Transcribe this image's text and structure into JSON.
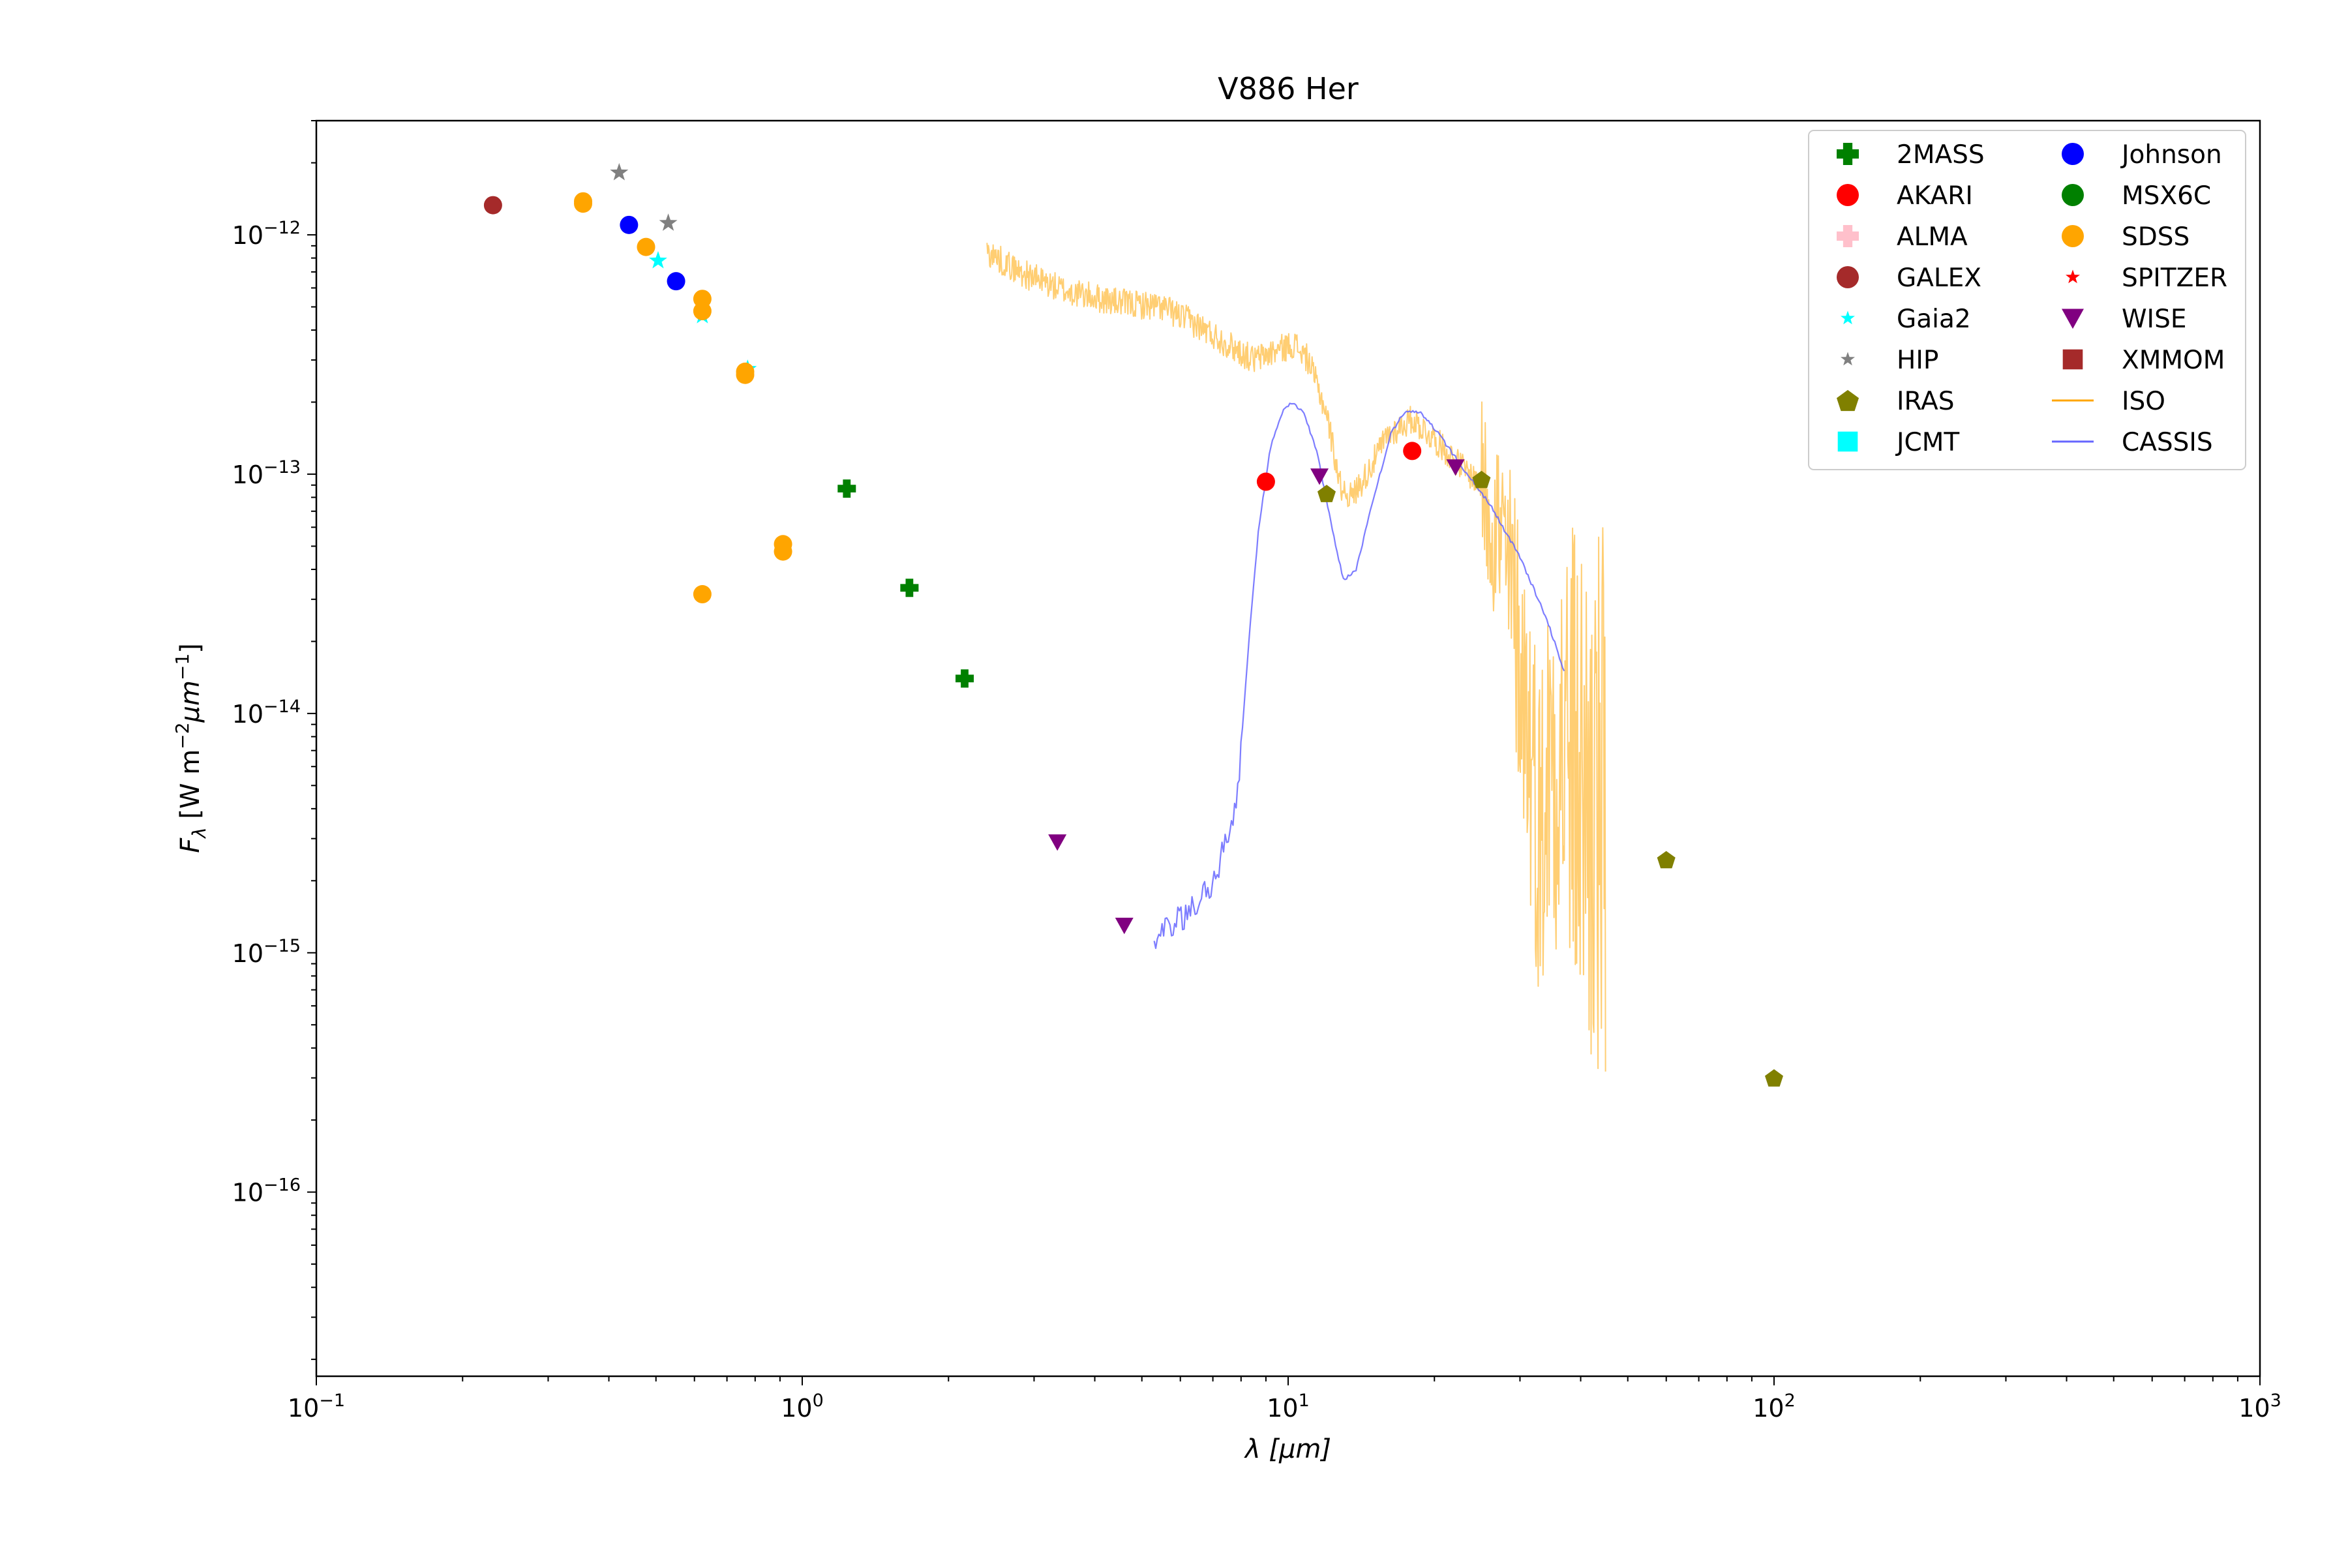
{
  "chart_data": {
    "type": "scatter",
    "title": "V886 Her",
    "xlabel": "λ [μm]",
    "ylabel": "F_λ [W m⁻² μm⁻¹]",
    "x_scale": "log",
    "y_scale": "log",
    "xlim": [
      0.1,
      1000
    ],
    "ylim": [
      1.7e-17,
      3e-12
    ],
    "x_ticks": [
      {
        "value": 0.1,
        "base": "10",
        "exp": "−1"
      },
      {
        "value": 1,
        "base": "10",
        "exp": "0"
      },
      {
        "value": 10,
        "base": "10",
        "exp": "1"
      },
      {
        "value": 100,
        "base": "10",
        "exp": "2"
      },
      {
        "value": 1000,
        "base": "10",
        "exp": "3"
      }
    ],
    "y_ticks": [
      {
        "value": 1e-16,
        "base": "10",
        "exp": "−16"
      },
      {
        "value": 1e-15,
        "base": "10",
        "exp": "−15"
      },
      {
        "value": 1e-14,
        "base": "10",
        "exp": "−14"
      },
      {
        "value": 1e-13,
        "base": "10",
        "exp": "−13"
      },
      {
        "value": 1e-12,
        "base": "10",
        "exp": "−12"
      }
    ],
    "grid": false,
    "legend_position": "top-right",
    "series": [
      {
        "name": "2MASS",
        "marker": "plus",
        "color": "#008000",
        "points": [
          [
            1.235,
            8.7e-14
          ],
          [
            1.662,
            3.35e-14
          ],
          [
            2.159,
            1.4e-14
          ]
        ]
      },
      {
        "name": "AKARI",
        "marker": "circle",
        "color": "#ff0000",
        "points": [
          [
            9.0,
            9.3e-14
          ],
          [
            18.0,
            1.25e-13
          ]
        ]
      },
      {
        "name": "ALMA",
        "marker": "plus",
        "color": "#ffc0cb",
        "points": []
      },
      {
        "name": "GALEX",
        "marker": "circle",
        "color": "#a52a2a",
        "points": [
          [
            0.231,
            1.33e-12
          ]
        ]
      },
      {
        "name": "Gaia2",
        "marker": "star",
        "color": "#00ffff",
        "points": [
          [
            0.505,
            7.8e-13
          ],
          [
            0.623,
            4.6e-13
          ],
          [
            0.772,
            2.75e-13
          ]
        ]
      },
      {
        "name": "HIP",
        "marker": "star",
        "color": "#808080",
        "points": [
          [
            0.42,
            1.82e-12
          ],
          [
            0.53,
            1.12e-12
          ]
        ]
      },
      {
        "name": "IRAS",
        "marker": "pentagon",
        "color": "#808000",
        "points": [
          [
            12.0,
            8.3e-14
          ],
          [
            25.0,
            9.5e-14
          ],
          [
            60.0,
            2.45e-15
          ],
          [
            100.0,
            3e-16
          ]
        ]
      },
      {
        "name": "JCMT",
        "marker": "square",
        "color": "#00ffff",
        "points": []
      },
      {
        "name": "Johnson",
        "marker": "circle",
        "color": "#0000ff",
        "points": [
          [
            0.44,
            1.1e-12
          ],
          [
            0.55,
            6.4e-13
          ]
        ]
      },
      {
        "name": "MSX6C",
        "marker": "circle",
        "color": "#008000",
        "points": []
      },
      {
        "name": "SDSS",
        "marker": "circle",
        "color": "#ffa500",
        "points": [
          [
            0.354,
            1.38e-12
          ],
          [
            0.354,
            1.35e-12
          ],
          [
            0.477,
            8.9e-13
          ],
          [
            0.623,
            5.4e-13
          ],
          [
            0.623,
            4.8e-13
          ],
          [
            0.763,
            2.6e-13
          ],
          [
            0.763,
            2.68e-13
          ],
          [
            0.913,
            5.1e-14
          ],
          [
            0.913,
            4.75e-14
          ],
          [
            0.623,
            3.15e-14
          ]
        ]
      },
      {
        "name": "SPITZER",
        "marker": "star",
        "color": "#ff0000",
        "points": []
      },
      {
        "name": "WISE",
        "marker": "triangle-down",
        "color": "#800080",
        "points": [
          [
            3.35,
            2.9e-15
          ],
          [
            4.6,
            1.3e-15
          ],
          [
            11.6,
            9.8e-14
          ],
          [
            22.1,
            1.07e-13
          ]
        ]
      },
      {
        "name": "XMMOM",
        "marker": "square",
        "color": "#a52a2a",
        "points": []
      }
    ],
    "lines": [
      {
        "name": "ISO",
        "color": "#ffa500",
        "anchors": [
          [
            2.4,
            8.5e-13
          ],
          [
            2.8,
            7e-13
          ],
          [
            3.5,
            5.8e-13
          ],
          [
            4.5,
            5.2e-13
          ],
          [
            5.5,
            5e-13
          ],
          [
            6.5,
            4.2e-13
          ],
          [
            7.5,
            3.5e-13
          ],
          [
            8.5,
            3e-13
          ],
          [
            9.5,
            3.3e-13
          ],
          [
            10.3,
            3.5e-13
          ],
          [
            11.0,
            3e-13
          ],
          [
            12.0,
            1.8e-13
          ],
          [
            12.8,
            9e-14
          ],
          [
            13.5,
            8e-14
          ],
          [
            14.5,
            1e-13
          ],
          [
            16.0,
            1.45e-13
          ],
          [
            18.0,
            1.7e-13
          ],
          [
            20.0,
            1.4e-13
          ],
          [
            22.0,
            1.15e-13
          ],
          [
            25.0,
            9e-14
          ],
          [
            27.0,
            6e-14
          ],
          [
            29.0,
            3e-14
          ],
          [
            31.0,
            1e-14
          ],
          [
            33.0,
            3e-15
          ],
          [
            35.0,
            8e-15
          ],
          [
            38.0,
            7e-15
          ],
          [
            42.0,
            4e-15
          ],
          [
            45.0,
            3e-15
          ]
        ]
      },
      {
        "name": "CASSIS",
        "color": "#6666ff",
        "anchors": [
          [
            5.3,
            1.15e-15
          ],
          [
            5.8,
            1.3e-15
          ],
          [
            6.5,
            1.6e-15
          ],
          [
            7.0,
            2e-15
          ],
          [
            7.5,
            3e-15
          ],
          [
            7.9,
            5e-15
          ],
          [
            8.3,
            2e-14
          ],
          [
            8.7,
            6e-14
          ],
          [
            9.2,
            1.3e-13
          ],
          [
            9.8,
            1.9e-13
          ],
          [
            10.2,
            2e-13
          ],
          [
            10.8,
            1.8e-13
          ],
          [
            11.5,
            1.2e-13
          ],
          [
            12.3,
            6e-14
          ],
          [
            13.0,
            3.6e-14
          ],
          [
            13.8,
            4e-14
          ],
          [
            15.0,
            8e-14
          ],
          [
            16.3,
            1.5e-13
          ],
          [
            17.5,
            1.85e-13
          ],
          [
            18.8,
            1.8e-13
          ],
          [
            20.5,
            1.45e-13
          ],
          [
            23.0,
            1.05e-13
          ],
          [
            26.0,
            7.5e-14
          ],
          [
            30.0,
            4.5e-14
          ],
          [
            34.0,
            2.5e-14
          ],
          [
            37.0,
            1.5e-14
          ]
        ]
      }
    ]
  }
}
